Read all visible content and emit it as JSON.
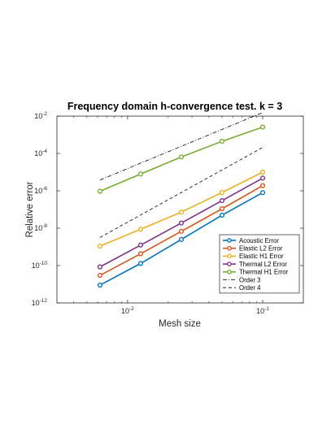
{
  "chart_data": {
    "type": "line",
    "title": "Frequency domain h-convergence test. k = 3",
    "xlabel": "Mesh size",
    "ylabel": "Relative error",
    "xscale": "log",
    "yscale": "log",
    "xlim": [
      0.003,
      0.2
    ],
    "ylim": [
      1e-12,
      0.01
    ],
    "xticks": [
      {
        "value": 0.01,
        "base": "10",
        "exp": "-2"
      },
      {
        "value": 0.1,
        "base": "10",
        "exp": "-1"
      }
    ],
    "yticks": [
      {
        "value": 1e-12,
        "base": "10",
        "exp": "-12"
      },
      {
        "value": 1e-10,
        "base": "10",
        "exp": "-10"
      },
      {
        "value": 1e-08,
        "base": "10",
        "exp": "-8"
      },
      {
        "value": 1e-06,
        "base": "10",
        "exp": "-6"
      },
      {
        "value": 0.0001,
        "base": "10",
        "exp": "-4"
      },
      {
        "value": 0.01,
        "base": "10",
        "exp": "-2"
      }
    ],
    "grid": false,
    "legend_location": "bottom-right",
    "x": [
      0.00625,
      0.0125,
      0.025,
      0.05,
      0.1
    ],
    "series": [
      {
        "name": "Acoustic Error",
        "color": "#0072BD",
        "marker": "circle",
        "line": "solid",
        "values": [
          9e-12,
          1.3e-10,
          2.5e-09,
          5e-08,
          8e-07
        ]
      },
      {
        "name": "Elastic L2 Error",
        "color": "#D95319",
        "marker": "circle",
        "line": "solid",
        "values": [
          3e-11,
          4.3e-10,
          6.8e-09,
          1.1e-07,
          1.9e-06
        ]
      },
      {
        "name": "Elastic H1 Error",
        "color": "#EDB120",
        "marker": "circle",
        "line": "solid",
        "values": [
          1.1e-09,
          8.8e-09,
          7.3e-08,
          8.2e-07,
          1e-05
        ]
      },
      {
        "name": "Thermal L2 Error",
        "color": "#7E2F8E",
        "marker": "circle",
        "line": "solid",
        "values": [
          8.5e-11,
          1.25e-09,
          1.9e-08,
          3e-07,
          4.8e-06
        ]
      },
      {
        "name": "Thermal H1 Error",
        "color": "#77AC30",
        "marker": "circle",
        "line": "solid",
        "values": [
          9.5e-07,
          8e-06,
          6.5e-05,
          0.00045,
          0.0026
        ]
      },
      {
        "name": "Order 3",
        "color": "#000000",
        "marker": "none",
        "line": "dashdot",
        "values": [
          3.8e-06,
          3.04e-05,
          0.000243,
          0.00194,
          0.0156
        ]
      },
      {
        "name": "Order 4",
        "color": "#000000",
        "marker": "none",
        "line": "dashed",
        "values": [
          3.2e-09,
          5.12e-08,
          8.19e-07,
          1.31e-05,
          0.00021
        ]
      }
    ]
  }
}
